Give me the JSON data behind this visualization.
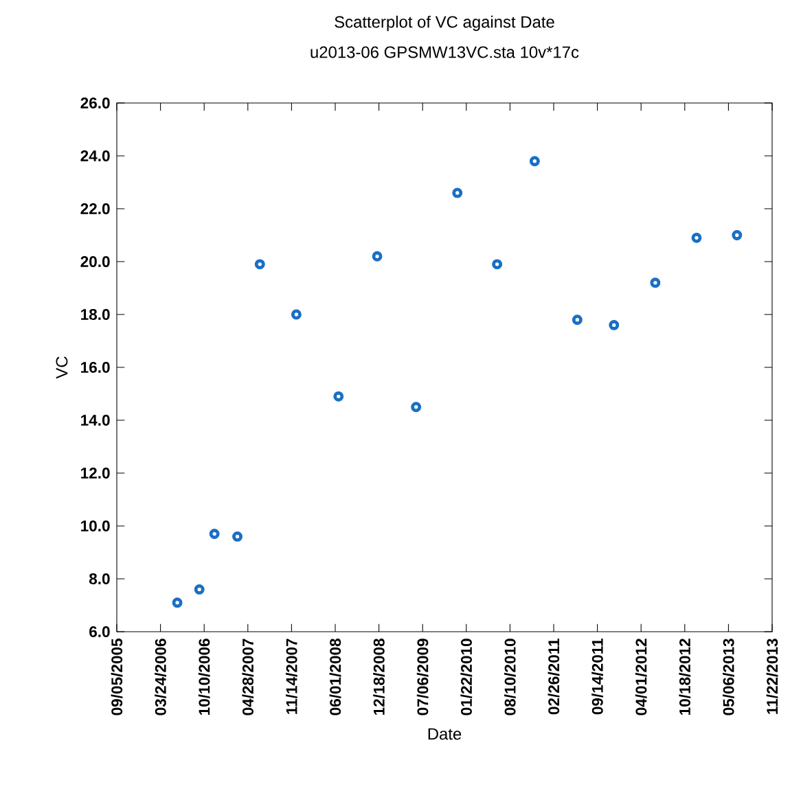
{
  "chart_data": {
    "type": "scatter",
    "title": "Scatterplot of VC against Date",
    "subtitle": "u2013-06 GPSMW13VC.sta 10v*17c",
    "xlabel": "Date",
    "ylabel": "VC",
    "x": [
      "2006-06-09",
      "2006-09-18",
      "2006-11-26",
      "2007-03-11",
      "2007-06-22",
      "2007-12-06",
      "2008-06-16",
      "2008-12-10",
      "2009-06-06",
      "2009-12-12",
      "2010-06-12",
      "2010-12-01",
      "2011-06-14",
      "2011-11-29",
      "2012-06-05",
      "2012-12-11",
      "2013-06-14"
    ],
    "values": [
      7.1,
      7.6,
      9.7,
      9.6,
      19.9,
      18.0,
      14.9,
      20.2,
      14.5,
      22.6,
      19.9,
      23.8,
      17.8,
      17.6,
      19.2,
      20.9,
      21.0
    ],
    "color": "#1a6fc4",
    "marker": "circle",
    "xlim": [
      "2005-09-05",
      "2013-11-22"
    ],
    "xticks": [
      {
        "value": "2005-09-05",
        "label": "09/05/2005"
      },
      {
        "value": "2006-03-24",
        "label": "03/24/2006"
      },
      {
        "value": "2006-10-10",
        "label": "10/10/2006"
      },
      {
        "value": "2007-04-28",
        "label": "04/28/2007"
      },
      {
        "value": "2007-11-14",
        "label": "11/14/2007"
      },
      {
        "value": "2008-06-01",
        "label": "06/01/2008"
      },
      {
        "value": "2008-12-18",
        "label": "12/18/2008"
      },
      {
        "value": "2009-07-06",
        "label": "07/06/2009"
      },
      {
        "value": "2010-01-22",
        "label": "01/22/2010"
      },
      {
        "value": "2010-08-10",
        "label": "08/10/2010"
      },
      {
        "value": "2011-02-26",
        "label": "02/26/2011"
      },
      {
        "value": "2011-09-14",
        "label": "09/14/2011"
      },
      {
        "value": "2012-04-01",
        "label": "04/01/2012"
      },
      {
        "value": "2012-10-18",
        "label": "10/18/2012"
      },
      {
        "value": "2013-05-06",
        "label": "05/06/2013"
      },
      {
        "value": "2013-11-22",
        "label": "11/22/2013"
      }
    ],
    "ylim": [
      6,
      26
    ],
    "yticks": [
      {
        "value": 6,
        "label": "6.0"
      },
      {
        "value": 8,
        "label": "8.0"
      },
      {
        "value": 10,
        "label": "10.0"
      },
      {
        "value": 12,
        "label": "12.0"
      },
      {
        "value": 14,
        "label": "14.0"
      },
      {
        "value": 16,
        "label": "16.0"
      },
      {
        "value": 18,
        "label": "18.0"
      },
      {
        "value": 20,
        "label": "20.0"
      },
      {
        "value": 22,
        "label": "22.0"
      },
      {
        "value": 24,
        "label": "24.0"
      },
      {
        "value": 26,
        "label": "26.0"
      }
    ]
  }
}
